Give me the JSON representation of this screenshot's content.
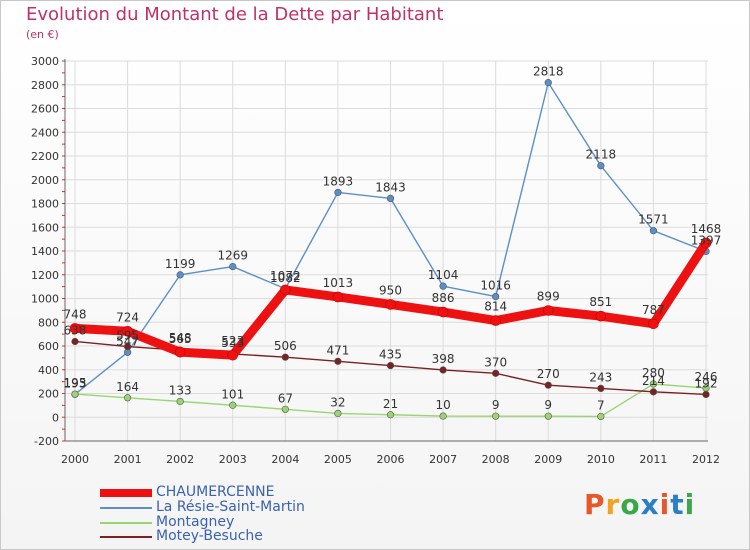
{
  "title": "Evolution du Montant de la Dette par Habitant",
  "subtitle": "(en €)",
  "logo": {
    "text": "Proxiti",
    "colors": [
      "#e8572a",
      "#f4a21d",
      "#3aa84a",
      "#2a7fc9",
      "#e8572a",
      "#2a7fc9",
      "#3aa84a"
    ]
  },
  "chart_data": {
    "type": "line",
    "title": "Evolution du Montant de la Dette par Habitant",
    "ylabel": "(en €)",
    "x": [
      "2000",
      "2001",
      "2002",
      "2003",
      "2004",
      "2005",
      "2006",
      "2007",
      "2008",
      "2009",
      "2010",
      "2011",
      "2012"
    ],
    "ylim": [
      -200,
      3000
    ],
    "yticks": [
      -200,
      0,
      200,
      400,
      600,
      800,
      1000,
      1200,
      1400,
      1600,
      1800,
      2000,
      2200,
      2400,
      2600,
      2800,
      3000
    ],
    "grid": true,
    "legend_position": "bottom-left",
    "series": [
      {
        "name": "CHAUMERCENNE",
        "color": "#ee1111",
        "values": [
          748,
          724,
          548,
          523,
          1072,
          1013,
          950,
          886,
          814,
          899,
          851,
          787,
          1468
        ],
        "labels": [
          "748",
          "724",
          "548",
          "523",
          "1072",
          "1013",
          "950",
          "886",
          "814",
          "899",
          "851",
          "787",
          "1468"
        ]
      },
      {
        "name": "La Résie-Saint-Martin",
        "color": "#5b8fc9",
        "values": [
          193,
          547,
          1199,
          1269,
          1082,
          1893,
          1843,
          1104,
          1016,
          2818,
          2118,
          1571,
          1397
        ],
        "labels": [
          "193",
          "547",
          "1199",
          "1269",
          "1082",
          "1893",
          "1843",
          "1104",
          "1016",
          "2818",
          "2118",
          "1571",
          "1397"
        ]
      },
      {
        "name": "Montagney",
        "color": "#99d672",
        "values": [
          195,
          164,
          133,
          101,
          67,
          32,
          21,
          10,
          9,
          9,
          7,
          280,
          246
        ],
        "labels": [
          "195",
          "164",
          "133",
          "101",
          "67",
          "32",
          "21",
          "10",
          "9",
          "9",
          "7",
          "280",
          "246"
        ]
      },
      {
        "name": "Motey-Besuche",
        "color": "#7a2222",
        "values": [
          638,
          595,
          565,
          533,
          506,
          471,
          435,
          398,
          370,
          270,
          243,
          214,
          192
        ],
        "labels": [
          "638",
          "595",
          "565",
          "533",
          "506",
          "471",
          "435",
          "398",
          "370",
          "270",
          "243",
          "214",
          "192"
        ]
      }
    ]
  }
}
